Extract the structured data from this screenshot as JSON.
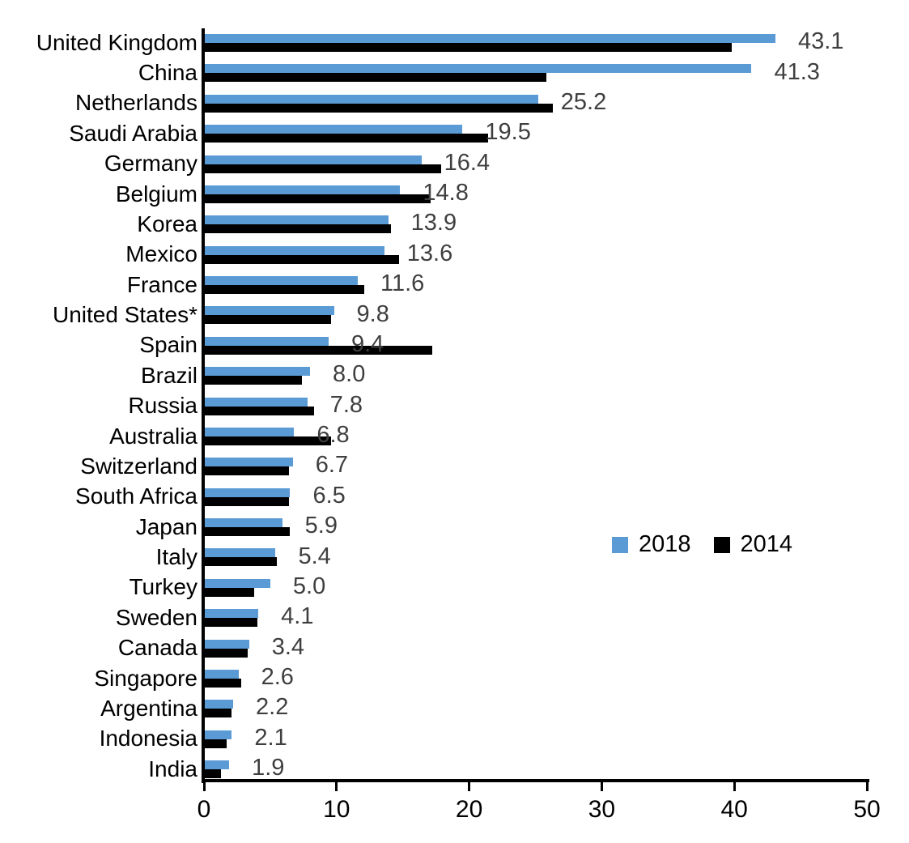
{
  "chart_data": {
    "type": "bar",
    "orientation": "horizontal",
    "title": "",
    "xlabel": "",
    "ylabel": "",
    "xlim": [
      0,
      50
    ],
    "x_ticks": [
      "0",
      "10",
      "20",
      "30",
      "40",
      "50"
    ],
    "grid": false,
    "legend_position": "middle-right",
    "value_label_color": "#3F3F3F",
    "axis_color": "#000000",
    "categories": [
      "United Kingdom",
      "China",
      "Netherlands",
      "Saudi Arabia",
      "Germany",
      "Belgium",
      "Korea",
      "Mexico",
      "France",
      "United States*",
      "Spain",
      "Brazil",
      "Russia",
      "Australia",
      "Switzerland",
      "South Africa",
      "Japan",
      "Italy",
      "Turkey",
      "Sweden",
      "Canada",
      "Singapore",
      "Argentina",
      "Indonesia",
      "India"
    ],
    "series": [
      {
        "name": "2018",
        "color": "#5B9BD5",
        "values": [
          43.1,
          41.3,
          25.2,
          19.5,
          16.4,
          14.8,
          13.9,
          13.6,
          11.6,
          9.8,
          9.4,
          8.0,
          7.8,
          6.8,
          6.7,
          6.5,
          5.9,
          5.4,
          5.0,
          4.1,
          3.4,
          2.6,
          2.2,
          2.1,
          1.9
        ],
        "data_labels": [
          "43.1",
          "41.3",
          "25.2",
          "19.5",
          "16.4",
          "14.8",
          "13.9",
          "13.6",
          "11.6",
          "9.8",
          "9.4",
          "8.0",
          "7.8",
          "6.8",
          "6.7",
          "6.5",
          "5.9",
          "5.4",
          "5.0",
          "4.1",
          "3.4",
          "2.6",
          "2.2",
          "2.1",
          "1.9"
        ]
      },
      {
        "name": "2014",
        "color": "#000000",
        "values": [
          39.8,
          25.8,
          26.3,
          21.4,
          17.9,
          17.1,
          14.1,
          14.7,
          12.1,
          9.6,
          17.2,
          7.4,
          8.3,
          9.6,
          6.4,
          6.4,
          6.5,
          5.5,
          3.8,
          4.0,
          3.3,
          2.8,
          2.1,
          1.7,
          1.3
        ]
      }
    ],
    "legend": [
      {
        "label": "2018",
        "color": "#5B9BD5"
      },
      {
        "label": "2014",
        "color": "#000000"
      }
    ]
  }
}
